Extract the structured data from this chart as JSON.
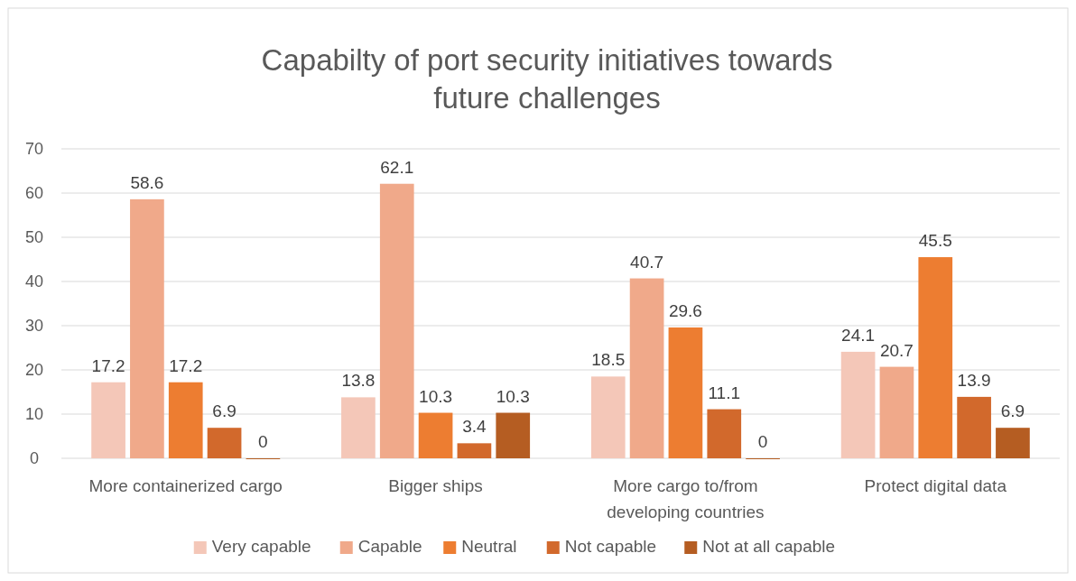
{
  "chart_data": {
    "type": "bar",
    "title": "Capabilty of port security initiatives towards future challenges",
    "categories": [
      "More containerized cargo",
      "Bigger ships",
      "More cargo to/from developing countries",
      "Protect digital data"
    ],
    "series": [
      {
        "name": "Very capable",
        "color": "#f4c7b8",
        "values": [
          17.2,
          13.8,
          18.5,
          24.1
        ]
      },
      {
        "name": "Capable",
        "color": "#f0a98a",
        "values": [
          58.6,
          62.1,
          40.7,
          20.7
        ]
      },
      {
        "name": "Neutral",
        "color": "#ed7d31",
        "values": [
          17.2,
          10.3,
          29.6,
          45.5
        ]
      },
      {
        "name": "Not capable",
        "color": "#d2692c",
        "values": [
          6.9,
          3.4,
          11.1,
          13.9
        ]
      },
      {
        "name": "Not at all capable",
        "color": "#b55d22",
        "values": [
          0,
          10.3,
          0,
          6.9
        ]
      }
    ],
    "ylim": [
      0,
      70
    ],
    "yticks": [
      0,
      10,
      20,
      30,
      40,
      50,
      60,
      70
    ],
    "grid": "y",
    "legend": "bottom",
    "data_labels": true
  }
}
